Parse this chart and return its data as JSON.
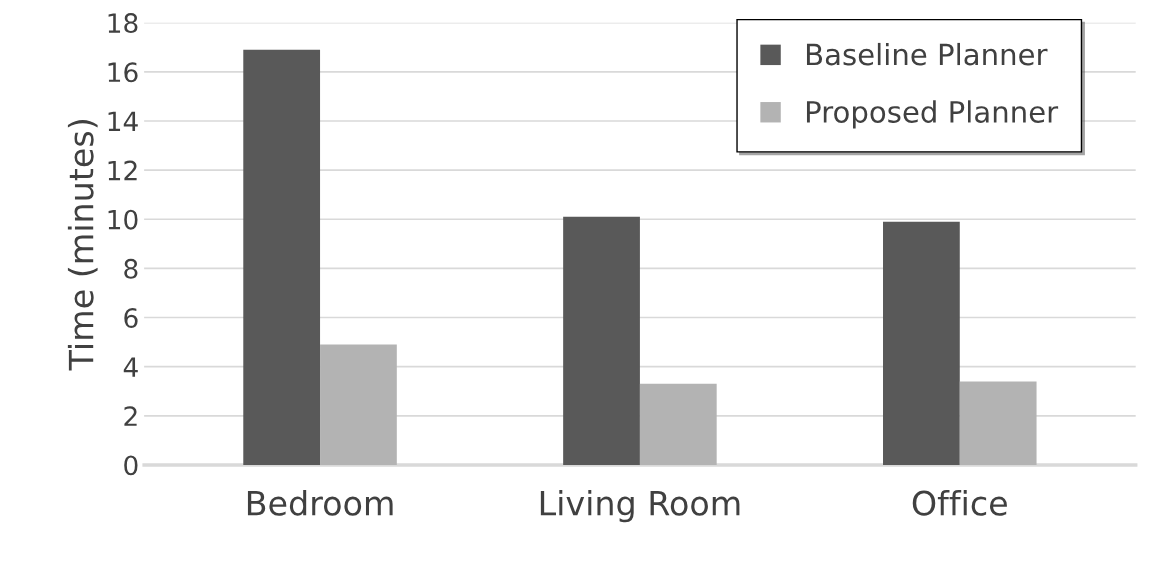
{
  "chart_data": {
    "type": "bar",
    "ylabel": "Time (minutes)",
    "categories": [
      "Bedroom",
      "Living Room",
      "Office"
    ],
    "series": [
      {
        "name": "Baseline Planner",
        "color": "#595959",
        "values": [
          16.9,
          10.1,
          9.9
        ]
      },
      {
        "name": "Proposed Planner",
        "color": "#b3b3b3",
        "values": [
          4.9,
          3.3,
          3.4
        ]
      }
    ],
    "ylim": [
      0,
      18
    ],
    "yticks": [
      0,
      2,
      4,
      6,
      8,
      10,
      12,
      14,
      16,
      18
    ],
    "grid": "y",
    "legend": "top right"
  }
}
